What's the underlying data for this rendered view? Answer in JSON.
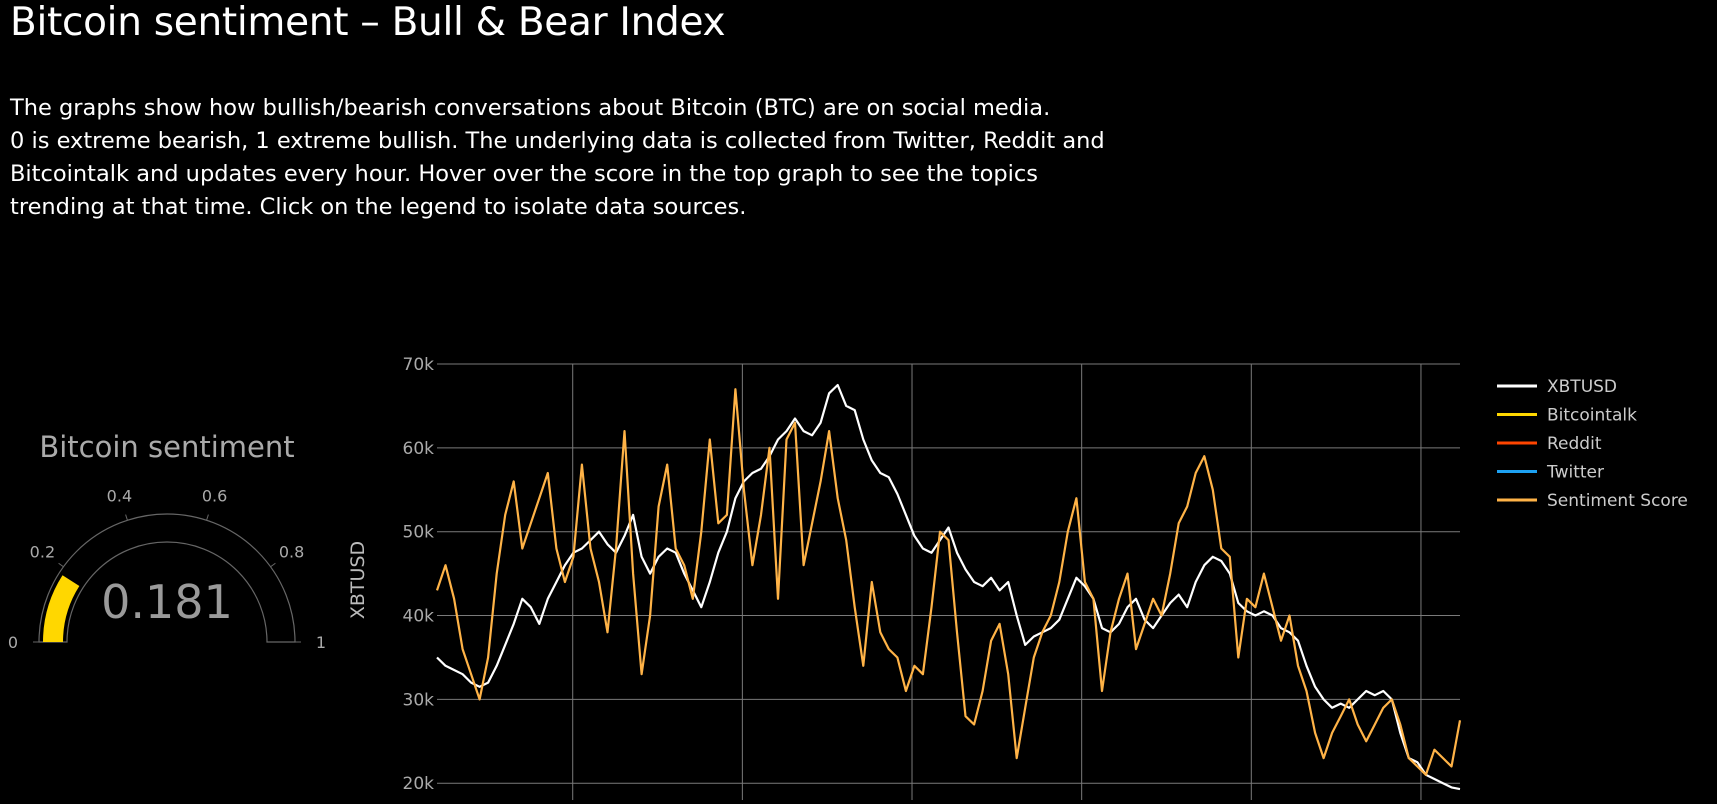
{
  "page": {
    "title": "Bitcoin sentiment – Bull & Bear Index",
    "description": [
      "The graphs show how bullish/bearish conversations about Bitcoin (BTC) are on social media.",
      "0 is extreme bearish, 1 extreme bullish. The underlying data is collected from Twitter, Reddit and",
      "Bitcointalk and updates every hour. Hover over the score in the top graph to see the topics",
      "trending at that time. Click on the legend to isolate data sources."
    ]
  },
  "gauge": {
    "title": "Bitcoin sentiment",
    "value": 0.181,
    "value_text": "0.181",
    "range": [
      0,
      1
    ],
    "tick_labels": [
      "0",
      "0.2",
      "0.4",
      "0.6",
      "0.8",
      "1"
    ],
    "ticks": [
      0,
      0.2,
      0.4,
      0.6,
      0.8,
      1
    ],
    "bar_color": "#ffd700",
    "outline_color": "#666666",
    "value_color": "#9a9a9a"
  },
  "chart_data": {
    "type": "line",
    "ylabel": "XBTUSD",
    "xlabel": "",
    "ylim": [
      18000,
      70000
    ],
    "yticks": [
      20000,
      30000,
      40000,
      50000,
      60000,
      70000
    ],
    "ytick_labels": [
      "20k",
      "30k",
      "40k",
      "50k",
      "60k",
      "70k"
    ],
    "grid": true,
    "legend_position": "right",
    "legend": [
      {
        "name": "XBTUSD",
        "color": "#ffffff"
      },
      {
        "name": "Bitcointalk",
        "color": "#ffd700"
      },
      {
        "name": "Reddit",
        "color": "#ff4500"
      },
      {
        "name": "Twitter",
        "color": "#1da1f2"
      },
      {
        "name": "Sentiment Score",
        "color": "#ffb347"
      }
    ],
    "series": [
      {
        "name": "XBTUSD",
        "color": "#ffffff",
        "values": [
          35000,
          34000,
          33500,
          33000,
          32000,
          31500,
          32000,
          34000,
          36500,
          39000,
          42000,
          41000,
          39000,
          42000,
          44000,
          46000,
          47500,
          48000,
          49000,
          50000,
          48500,
          47500,
          49500,
          52000,
          47000,
          45000,
          47000,
          48000,
          47500,
          45000,
          43000,
          41000,
          44000,
          47500,
          50000,
          54000,
          56000,
          57000,
          57500,
          59000,
          61000,
          62000,
          63500,
          62000,
          61500,
          63000,
          66500,
          67500,
          65000,
          64500,
          61000,
          58500,
          57000,
          56500,
          54500,
          52000,
          49500,
          48000,
          47500,
          49000,
          50500,
          47500,
          45500,
          44000,
          43500,
          44500,
          43000,
          44000,
          40000,
          36500,
          37500,
          38000,
          38500,
          39500,
          42000,
          44500,
          43500,
          42000,
          38500,
          38000,
          39000,
          41000,
          42000,
          39500,
          38500,
          40000,
          41500,
          42500,
          41000,
          44000,
          46000,
          47000,
          46500,
          45000,
          41500,
          40500,
          40000,
          40500,
          40000,
          38500,
          38000,
          37000,
          34000,
          31500,
          30000,
          29000,
          29500,
          29000,
          30000,
          31000,
          30500,
          31000,
          30000,
          26000,
          23000,
          22500,
          21000,
          20500,
          20000,
          19500,
          19300
        ]
      },
      {
        "name": "Sentiment Score",
        "color": "#ffb347",
        "values": [
          43000,
          46000,
          42000,
          36000,
          33000,
          30000,
          35000,
          45000,
          52000,
          56000,
          48000,
          51000,
          54000,
          57000,
          48000,
          44000,
          47000,
          58000,
          48000,
          44000,
          38000,
          48000,
          62000,
          45000,
          33000,
          40000,
          53000,
          58000,
          48000,
          46000,
          42000,
          50000,
          61000,
          51000,
          52000,
          67000,
          55000,
          46000,
          52000,
          60000,
          42000,
          61000,
          63000,
          46000,
          51000,
          56000,
          62000,
          54000,
          49000,
          41000,
          34000,
          44000,
          38000,
          36000,
          35000,
          31000,
          34000,
          33000,
          41000,
          50000,
          49000,
          38000,
          28000,
          27000,
          31000,
          37000,
          39000,
          33000,
          23000,
          29000,
          35000,
          38000,
          40000,
          44000,
          50000,
          54000,
          44000,
          42000,
          31000,
          38000,
          42000,
          45000,
          36000,
          39000,
          42000,
          40000,
          45000,
          51000,
          53000,
          57000,
          59000,
          55000,
          48000,
          47000,
          35000,
          42000,
          41000,
          45000,
          41000,
          37000,
          40000,
          34000,
          31000,
          26000,
          23000,
          26000,
          28000,
          30000,
          27000,
          25000,
          27000,
          29000,
          30000,
          27000,
          23000,
          22000,
          21000,
          24000,
          23000,
          22000,
          27500
        ]
      }
    ]
  }
}
